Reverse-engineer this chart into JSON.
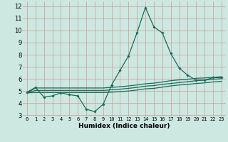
{
  "xlabel": "Humidex (Indice chaleur)",
  "bg_color": "#cce8e0",
  "grid_color": "#aacccc",
  "line_color": "#1a6b5a",
  "x_main": [
    0,
    1,
    2,
    3,
    4,
    5,
    6,
    7,
    8,
    9,
    10,
    11,
    12,
    13,
    14,
    15,
    16,
    17,
    18,
    19,
    20,
    21,
    22,
    23
  ],
  "y_main": [
    4.9,
    5.3,
    4.5,
    4.6,
    4.85,
    4.7,
    4.6,
    3.5,
    3.3,
    3.9,
    5.5,
    6.7,
    7.9,
    9.8,
    11.9,
    10.3,
    9.8,
    8.1,
    6.9,
    6.3,
    5.9,
    5.9,
    6.1,
    6.1
  ],
  "y_line1": [
    4.85,
    5.25,
    5.25,
    5.25,
    5.25,
    5.25,
    5.25,
    5.25,
    5.25,
    5.25,
    5.3,
    5.35,
    5.42,
    5.5,
    5.6,
    5.65,
    5.75,
    5.85,
    5.92,
    5.97,
    6.05,
    6.08,
    6.13,
    6.18
  ],
  "y_line2": [
    4.85,
    5.05,
    5.05,
    5.05,
    5.05,
    5.05,
    5.05,
    5.05,
    5.05,
    5.05,
    5.1,
    5.15,
    5.22,
    5.3,
    5.4,
    5.45,
    5.55,
    5.62,
    5.7,
    5.77,
    5.85,
    5.9,
    5.97,
    6.02
  ],
  "y_line3": [
    4.85,
    4.87,
    4.87,
    4.87,
    4.87,
    4.87,
    4.87,
    4.87,
    4.87,
    4.87,
    4.9,
    4.95,
    5.0,
    5.08,
    5.18,
    5.22,
    5.32,
    5.42,
    5.5,
    5.55,
    5.62,
    5.67,
    5.75,
    5.8
  ],
  "ylim": [
    2.9,
    12.4
  ],
  "yticks": [
    3,
    4,
    5,
    6,
    7,
    8,
    9,
    10,
    11,
    12
  ],
  "xlim": [
    -0.5,
    23.5
  ],
  "xticks": [
    0,
    1,
    2,
    3,
    4,
    5,
    6,
    7,
    8,
    9,
    10,
    11,
    12,
    13,
    14,
    15,
    16,
    17,
    18,
    19,
    20,
    21,
    22,
    23
  ]
}
